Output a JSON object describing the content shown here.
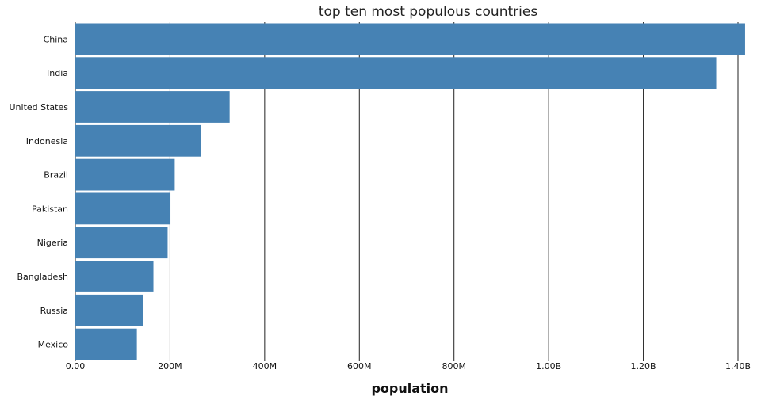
{
  "chart_data": {
    "type": "bar",
    "orientation": "horizontal",
    "title": "top ten most populous countries",
    "xlabel": "population",
    "ylabel": "",
    "categories": [
      "China",
      "India",
      "United States",
      "Indonesia",
      "Brazil",
      "Pakistan",
      "Nigeria",
      "Bangladesh",
      "Russia",
      "Mexico"
    ],
    "values": [
      1415000000,
      1354000000,
      326000000,
      266000000,
      210000000,
      201000000,
      195000000,
      165000000,
      143000000,
      130000000
    ],
    "xlim": [
      0,
      1400000000
    ],
    "x_ticks": [
      0,
      200000000,
      400000000,
      600000000,
      800000000,
      1000000000,
      1200000000,
      1400000000
    ],
    "x_tick_labels": [
      "0.00",
      "200M",
      "400M",
      "600M",
      "800M",
      "1.00B",
      "1.20B",
      "1.40B"
    ],
    "grid": "vertical",
    "bar_color": "#4682b4",
    "grid_color": "#222222"
  }
}
